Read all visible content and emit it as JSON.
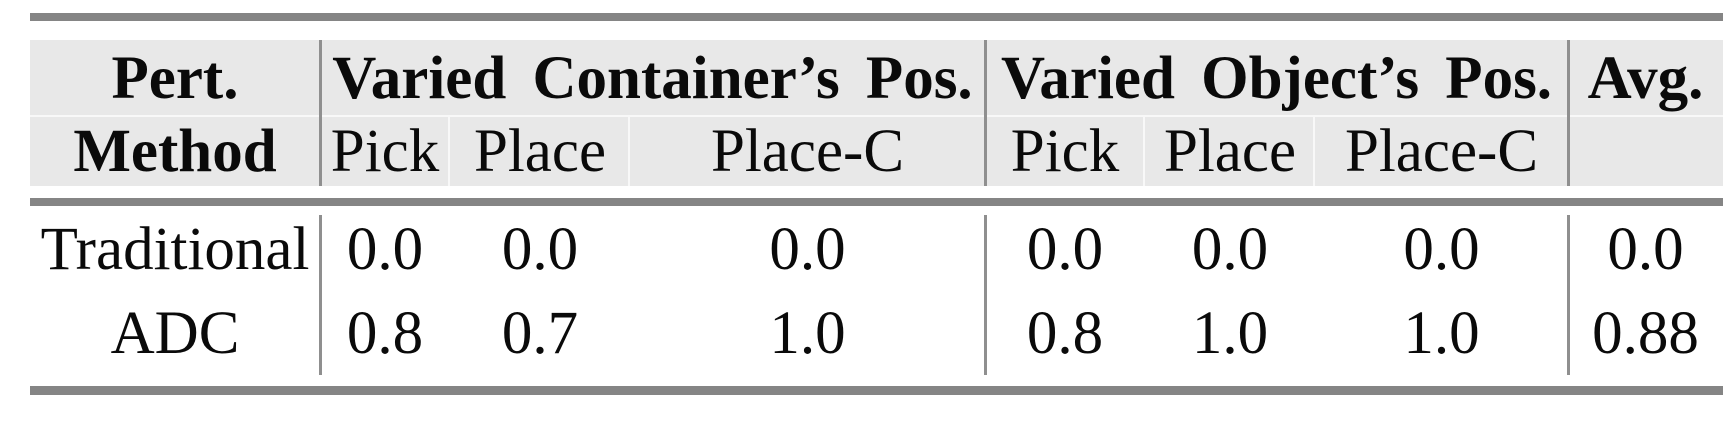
{
  "table": {
    "stub_header": {
      "line1": "Pert.",
      "line2": "Method"
    },
    "groups": [
      {
        "title": "Varied Container’s Pos.",
        "subcols": [
          "Pick",
          "Place",
          "Place-C"
        ]
      },
      {
        "title": "Varied Object’s Pos.",
        "subcols": [
          "Pick",
          "Place",
          "Place-C"
        ]
      }
    ],
    "avg_header": "Avg.",
    "rows": [
      {
        "method": "Traditional",
        "values": [
          "0.0",
          "0.0",
          "0.0",
          "0.0",
          "0.0",
          "0.0"
        ],
        "avg": "0.0"
      },
      {
        "method": "ADC",
        "values": [
          "0.8",
          "0.7",
          "1.0",
          "0.8",
          "1.0",
          "1.0"
        ],
        "avg": "0.88"
      }
    ]
  },
  "chart_data": {
    "type": "table",
    "columns": [
      "Pert. Method",
      "Varied Container’s Pos. — Pick",
      "Varied Container’s Pos. — Place",
      "Varied Container’s Pos. — Place-C",
      "Varied Object’s Pos. — Pick",
      "Varied Object’s Pos. — Place",
      "Varied Object’s Pos. — Place-C",
      "Avg."
    ],
    "rows": [
      [
        "Traditional",
        0.0,
        0.0,
        0.0,
        0.0,
        0.0,
        0.0,
        0.0
      ],
      [
        "ADC",
        0.8,
        0.7,
        1.0,
        0.8,
        1.0,
        1.0,
        0.88
      ]
    ]
  },
  "colors": {
    "header_bg": "#e8e8e8",
    "rule_gray": "#858585",
    "separator_gray": "#8f8f8f",
    "text_black": "#0a0a0a"
  }
}
